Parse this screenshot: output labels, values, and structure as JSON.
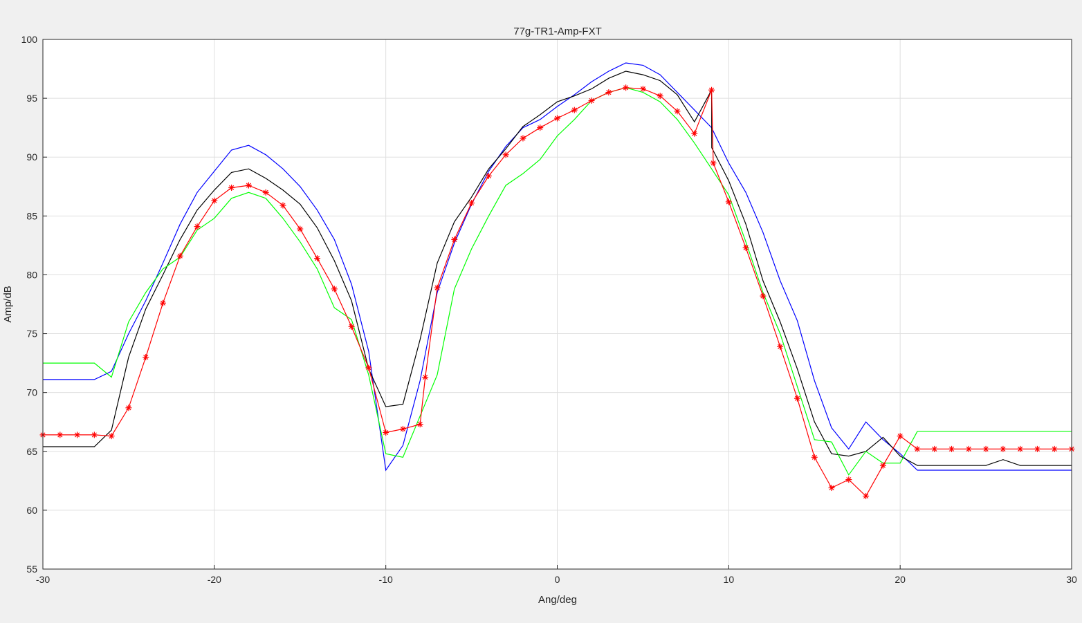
{
  "chart_data": {
    "type": "line",
    "title": "77g-TR1-Amp-FXT",
    "xlabel": "Ang/deg",
    "ylabel": "Amp/dB",
    "xlim": [
      -30,
      30
    ],
    "ylim": [
      55,
      100
    ],
    "xticks": [
      -30,
      -20,
      -10,
      0,
      10,
      20,
      30
    ],
    "yticks": [
      55,
      60,
      65,
      70,
      75,
      80,
      85,
      90,
      95,
      100
    ],
    "grid": true,
    "series": [
      {
        "color": "#0000ff",
        "marker": "none",
        "points": [
          [
            -30,
            71.1
          ],
          [
            -27,
            71.1
          ],
          [
            -26,
            71.8
          ],
          [
            -25,
            75.0
          ],
          [
            -24,
            77.8
          ],
          [
            -23,
            81.0
          ],
          [
            -22,
            84.3
          ],
          [
            -21,
            87.0
          ],
          [
            -20,
            88.8
          ],
          [
            -19,
            90.6
          ],
          [
            -18,
            91.0
          ],
          [
            -17,
            90.2
          ],
          [
            -16,
            89.0
          ],
          [
            -15,
            87.5
          ],
          [
            -14,
            85.5
          ],
          [
            -13,
            83.0
          ],
          [
            -12,
            79.2
          ],
          [
            -11,
            73.5
          ],
          [
            -10,
            63.4
          ],
          [
            -9,
            65.5
          ],
          [
            -8,
            71.0
          ],
          [
            -7,
            78.5
          ],
          [
            -6,
            82.7
          ],
          [
            -5,
            86.0
          ],
          [
            -4,
            88.8
          ],
          [
            -3,
            90.9
          ],
          [
            -2,
            92.5
          ],
          [
            -1,
            93.2
          ],
          [
            0,
            94.3
          ],
          [
            1,
            95.3
          ],
          [
            2,
            96.4
          ],
          [
            3,
            97.3
          ],
          [
            4,
            98.0
          ],
          [
            5,
            97.8
          ],
          [
            6,
            97.0
          ],
          [
            7,
            95.5
          ],
          [
            8,
            94.0
          ],
          [
            9,
            92.5
          ],
          [
            10,
            89.5
          ],
          [
            11,
            87.0
          ],
          [
            12,
            83.6
          ],
          [
            13,
            79.5
          ],
          [
            14,
            76.1
          ],
          [
            15,
            71.0
          ],
          [
            16,
            67.0
          ],
          [
            17,
            65.2
          ],
          [
            18,
            67.5
          ],
          [
            19,
            66.0
          ],
          [
            20,
            64.8
          ],
          [
            21,
            63.4
          ],
          [
            30,
            63.4
          ]
        ]
      },
      {
        "color": "#000000",
        "marker": "none",
        "points": [
          [
            -30,
            65.4
          ],
          [
            -27,
            65.4
          ],
          [
            -26,
            66.8
          ],
          [
            -25,
            73.0
          ],
          [
            -24,
            77.1
          ],
          [
            -23,
            80.0
          ],
          [
            -22,
            83.0
          ],
          [
            -21,
            85.5
          ],
          [
            -20,
            87.2
          ],
          [
            -19,
            88.7
          ],
          [
            -18,
            89.0
          ],
          [
            -17,
            88.2
          ],
          [
            -16,
            87.2
          ],
          [
            -15,
            86.0
          ],
          [
            -14,
            84.0
          ],
          [
            -13,
            81.2
          ],
          [
            -12,
            77.8
          ],
          [
            -11,
            72.0
          ],
          [
            -10,
            68.8
          ],
          [
            -9,
            69.0
          ],
          [
            -8,
            74.5
          ],
          [
            -7,
            81.0
          ],
          [
            -6,
            84.5
          ],
          [
            -5,
            86.6
          ],
          [
            -4,
            89.0
          ],
          [
            -3,
            90.7
          ],
          [
            -2,
            92.6
          ],
          [
            -1,
            93.6
          ],
          [
            0,
            94.7
          ],
          [
            1,
            95.2
          ],
          [
            2,
            95.8
          ],
          [
            3,
            96.7
          ],
          [
            4,
            97.3
          ],
          [
            5,
            97.0
          ],
          [
            6,
            96.5
          ],
          [
            7,
            95.3
          ],
          [
            8,
            93.0
          ],
          [
            9,
            95.7
          ],
          [
            9.01,
            90.8
          ],
          [
            10,
            88.0
          ],
          [
            11,
            84.3
          ],
          [
            12,
            79.5
          ],
          [
            13,
            76.0
          ],
          [
            14,
            72.0
          ],
          [
            15,
            67.5
          ],
          [
            16,
            64.8
          ],
          [
            17,
            64.6
          ],
          [
            18,
            65.0
          ],
          [
            19,
            66.2
          ],
          [
            20,
            64.6
          ],
          [
            21,
            63.8
          ],
          [
            25,
            63.8
          ],
          [
            26,
            64.3
          ],
          [
            27,
            63.8
          ],
          [
            30,
            63.8
          ]
        ]
      },
      {
        "color": "#00ff00",
        "marker": "none",
        "points": [
          [
            -30,
            72.5
          ],
          [
            -27,
            72.5
          ],
          [
            -26,
            71.3
          ],
          [
            -25,
            76.0
          ],
          [
            -24,
            78.5
          ],
          [
            -23,
            80.5
          ],
          [
            -22,
            81.5
          ],
          [
            -21,
            83.8
          ],
          [
            -20,
            84.8
          ],
          [
            -19,
            86.5
          ],
          [
            -18,
            87.0
          ],
          [
            -17,
            86.5
          ],
          [
            -16,
            84.8
          ],
          [
            -15,
            82.8
          ],
          [
            -14,
            80.5
          ],
          [
            -13,
            77.2
          ],
          [
            -12,
            76.2
          ],
          [
            -11,
            71.5
          ],
          [
            -10,
            64.8
          ],
          [
            -9,
            64.5
          ],
          [
            -8,
            68.0
          ],
          [
            -7,
            71.5
          ],
          [
            -6,
            78.8
          ],
          [
            -5,
            82.2
          ],
          [
            -4,
            85.0
          ],
          [
            -3,
            87.6
          ],
          [
            -2,
            88.6
          ],
          [
            -1,
            89.8
          ],
          [
            0,
            91.8
          ],
          [
            1,
            93.2
          ],
          [
            2,
            94.8
          ],
          [
            3,
            95.5
          ],
          [
            4,
            95.9
          ],
          [
            5,
            95.5
          ],
          [
            6,
            94.7
          ],
          [
            7,
            93.2
          ],
          [
            8,
            91.2
          ],
          [
            9,
            89.0
          ],
          [
            10,
            86.8
          ],
          [
            11,
            82.8
          ],
          [
            12,
            78.5
          ],
          [
            13,
            75.0
          ],
          [
            14,
            70.5
          ],
          [
            15,
            66.0
          ],
          [
            16,
            65.8
          ],
          [
            17,
            63.0
          ],
          [
            18,
            65.0
          ],
          [
            19,
            64.0
          ],
          [
            20,
            64.0
          ],
          [
            21,
            66.7
          ],
          [
            30,
            66.7
          ]
        ]
      },
      {
        "color": "#ff0000",
        "marker": "*",
        "points": [
          [
            -30,
            66.4
          ],
          [
            -29,
            66.4
          ],
          [
            -28,
            66.4
          ],
          [
            -27,
            66.4
          ],
          [
            -26,
            66.3
          ],
          [
            -25,
            68.7
          ],
          [
            -24,
            73.0
          ],
          [
            -23,
            77.6
          ],
          [
            -22,
            81.6
          ],
          [
            -21,
            84.1
          ],
          [
            -20,
            86.3
          ],
          [
            -19,
            87.4
          ],
          [
            -18,
            87.6
          ],
          [
            -17,
            87.0
          ],
          [
            -16,
            85.9
          ],
          [
            -15,
            83.9
          ],
          [
            -14,
            81.4
          ],
          [
            -13,
            78.8
          ],
          [
            -12,
            75.6
          ],
          [
            -11,
            72.1
          ],
          [
            -10,
            66.6
          ],
          [
            -9,
            66.9
          ],
          [
            -8,
            67.3
          ],
          [
            -7.7,
            71.3
          ],
          [
            -7,
            78.9
          ],
          [
            -6,
            83.0
          ],
          [
            -5,
            86.1
          ],
          [
            -4,
            88.4
          ],
          [
            -3,
            90.2
          ],
          [
            -2,
            91.6
          ],
          [
            -1,
            92.5
          ],
          [
            0,
            93.3
          ],
          [
            1,
            94.0
          ],
          [
            2,
            94.8
          ],
          [
            3,
            95.5
          ],
          [
            4,
            95.9
          ],
          [
            5,
            95.8
          ],
          [
            6,
            95.2
          ],
          [
            7,
            93.9
          ],
          [
            8,
            92.0
          ],
          [
            9,
            95.7
          ],
          [
            9.1,
            89.5
          ],
          [
            10,
            86.2
          ],
          [
            11,
            82.3
          ],
          [
            12,
            78.2
          ],
          [
            13,
            73.9
          ],
          [
            14,
            69.5
          ],
          [
            15,
            64.5
          ],
          [
            16,
            61.9
          ],
          [
            17,
            62.6
          ],
          [
            18,
            61.2
          ],
          [
            19,
            63.8
          ],
          [
            20,
            66.3
          ],
          [
            21,
            65.2
          ],
          [
            22,
            65.2
          ],
          [
            23,
            65.2
          ],
          [
            24,
            65.2
          ],
          [
            25,
            65.2
          ],
          [
            26,
            65.2
          ],
          [
            27,
            65.2
          ],
          [
            28,
            65.2
          ],
          [
            29,
            65.2
          ],
          [
            30,
            65.2
          ]
        ]
      }
    ]
  }
}
